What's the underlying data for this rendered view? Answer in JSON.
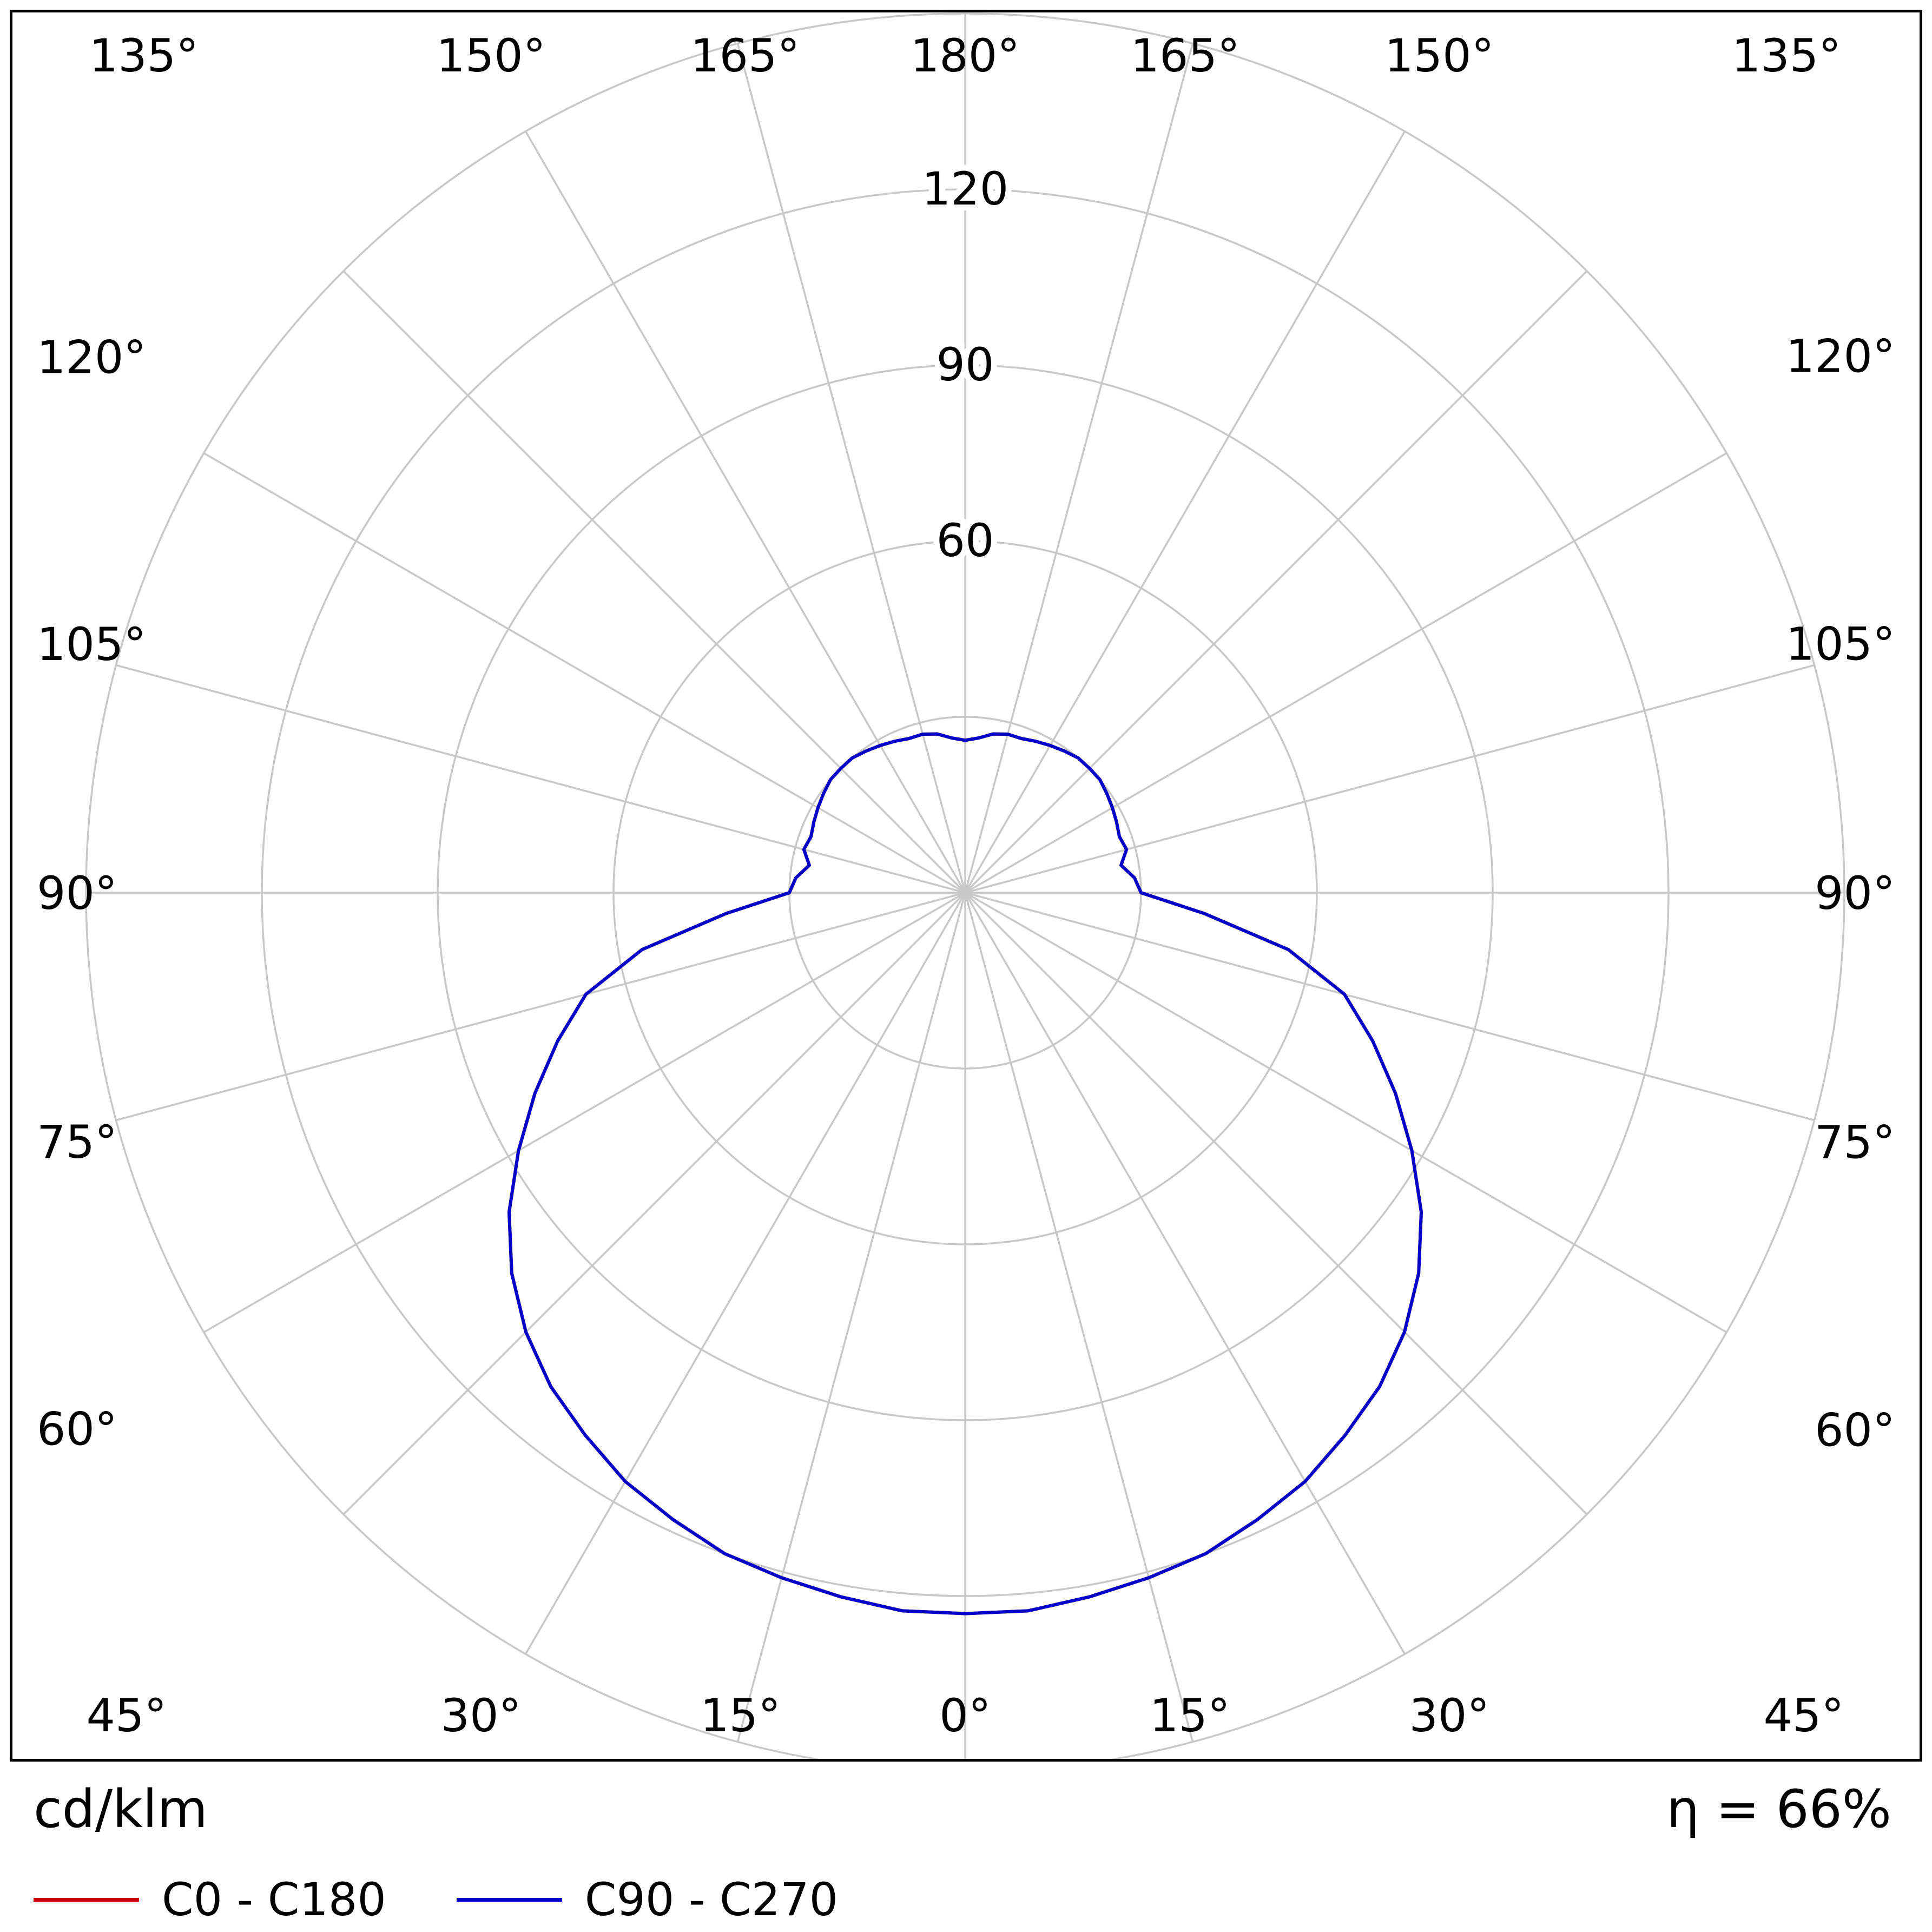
{
  "chart_data": {
    "type": "line",
    "subtype": "polar-photometric",
    "units_label": "cd/klm",
    "efficiency_label": "η = 66%",
    "r_max": 150,
    "rings": [
      30,
      60,
      90,
      120,
      150
    ],
    "ring_labels": [
      {
        "value": 60,
        "label": "60"
      },
      {
        "value": 90,
        "label": "90"
      },
      {
        "value": 120,
        "label": "120"
      }
    ],
    "angle_step_deg": 15,
    "angle_labels": [
      "0°",
      "15°",
      "30°",
      "45°",
      "60°",
      "75°",
      "90°",
      "105°",
      "120°",
      "135°",
      "150°",
      "165°",
      "180°"
    ],
    "gamma_deg": [
      0,
      5,
      10,
      15,
      20,
      25,
      30,
      35,
      40,
      45,
      50,
      55,
      60,
      65,
      70,
      75,
      80,
      85,
      90,
      95,
      100,
      105,
      110,
      115,
      120,
      125,
      130,
      135,
      140,
      145,
      150,
      155,
      160,
      165,
      170,
      175,
      180
    ],
    "series": [
      {
        "name": "C0 - C180",
        "color": "#cc0000",
        "values": [
          123,
          123,
          122,
          121,
          120,
          118,
          116,
          113,
          110,
          106,
          101,
          95,
          88,
          81,
          74,
          67,
          56,
          41,
          30,
          29,
          27,
          28.5,
          28,
          28.5,
          29,
          29.5,
          30,
          30,
          30,
          29.5,
          29,
          28.5,
          28,
          28,
          27.5,
          26.5,
          26
        ]
      },
      {
        "name": "C90 - C270",
        "color": "#0000c8",
        "values": [
          123,
          123,
          122,
          121,
          120,
          118,
          116,
          113,
          110,
          106,
          101,
          95,
          88,
          81,
          74,
          67,
          56,
          41,
          30,
          29,
          27,
          28.5,
          28,
          28.5,
          29,
          29.5,
          30,
          30,
          30,
          29.5,
          29,
          28.5,
          28,
          28,
          27.5,
          26.5,
          26
        ]
      }
    ],
    "legend_position": "bottom-left",
    "grid": true,
    "colors": {
      "grid": "#c8c8c8",
      "frame": "#000000",
      "background": "#ffffff",
      "text": "#000000"
    }
  }
}
